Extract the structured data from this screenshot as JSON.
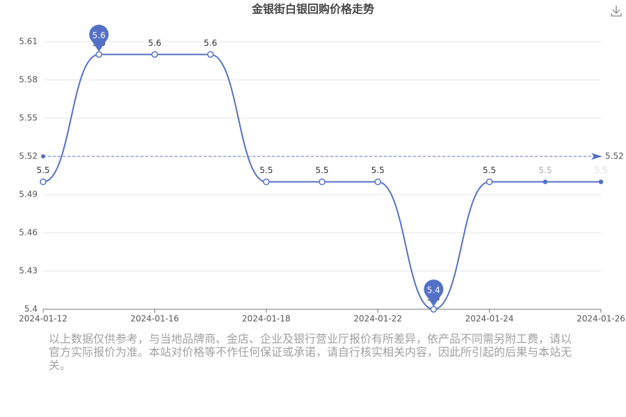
{
  "chart_data": {
    "type": "line",
    "title": "金银街白银回购价格走势",
    "categories": [
      "2024-01-12",
      null,
      "2024-01-16",
      null,
      "2024-01-18",
      null,
      "2024-01-22",
      null,
      "2024-01-24",
      null,
      "2024-01-26"
    ],
    "series": [
      {
        "name": "回购价格",
        "color": "#5470c6",
        "values": [
          5.5,
          5.6,
          5.6,
          5.6,
          5.5,
          5.5,
          5.5,
          5.4,
          5.5,
          5.5,
          5.5
        ]
      }
    ],
    "mark_line": {
      "value": 5.52
    },
    "ylim": [
      5.4,
      5.61
    ],
    "yticks": [
      5.4,
      5.43,
      5.46,
      5.49,
      5.52,
      5.55,
      5.58,
      5.61
    ],
    "grid": true,
    "note": "以上数据仅供参考，与当地品牌商、金店、企业及银行营业厅报价有所差异，依产品不同需另附工费，请以官方实际报价为准。本站对价格等不作任何保证或承诺，请自行核实相关内容，因此所引起的后果与本站无关。"
  }
}
